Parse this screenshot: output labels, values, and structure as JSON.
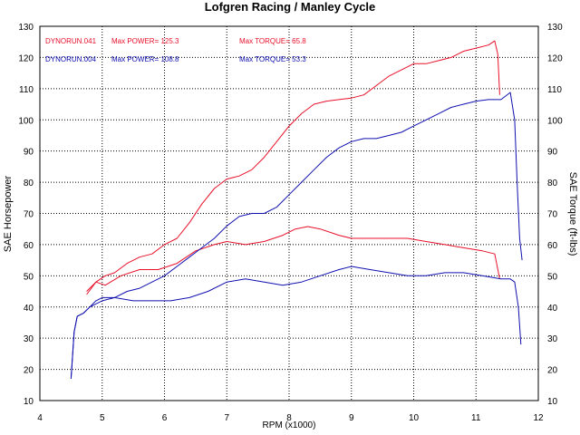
{
  "chart_data": {
    "type": "line",
    "title": "Lofgren Racing / Manley Cycle",
    "xlabel": "RPM (x1000)",
    "ylabel": "SAE Horsepower",
    "ylabel_right": "SAE Torque (ft-lbs)",
    "xlim": [
      4,
      12
    ],
    "ylim": [
      10,
      130
    ],
    "x_ticks": [
      4,
      5,
      6,
      7,
      8,
      9,
      10,
      11,
      12
    ],
    "y_ticks": [
      10,
      20,
      30,
      40,
      50,
      60,
      70,
      80,
      90,
      100,
      110,
      120,
      130
    ],
    "grid": true,
    "legend": [
      {
        "run": "DYNORUN.041",
        "power_label": "Max POWER= 125.3",
        "torque_label": "Max TORQUE= 65.8",
        "color": "#e8102a"
      },
      {
        "run": "DYNORUN.004",
        "power_label": "Max POWER= 108.8",
        "torque_label": "Max TORQUE= 53.3",
        "color": "#1010b0"
      }
    ],
    "series": [
      {
        "name": "DYNORUN.041 Power",
        "color": "#e8102a",
        "x": [
          4.75,
          4.9,
          5.05,
          5.2,
          5.4,
          5.6,
          5.8,
          6.0,
          6.2,
          6.4,
          6.6,
          6.8,
          7.0,
          7.2,
          7.4,
          7.6,
          7.8,
          8.0,
          8.2,
          8.4,
          8.6,
          8.8,
          9.0,
          9.2,
          9.4,
          9.6,
          9.8,
          10.0,
          10.2,
          10.4,
          10.6,
          10.8,
          11.0,
          11.2,
          11.3,
          11.35,
          11.38
        ],
        "y": [
          44,
          48,
          50,
          51,
          54,
          56,
          57,
          60,
          62,
          67,
          73,
          78,
          81,
          82,
          84,
          88,
          93,
          98,
          102,
          105,
          106,
          106.5,
          107,
          108,
          111,
          114,
          116,
          118,
          118,
          119,
          120,
          122,
          123,
          124,
          125.3,
          121,
          108
        ]
      },
      {
        "name": "DYNORUN.041 Torque",
        "color": "#e8102a",
        "x": [
          4.75,
          4.9,
          5.05,
          5.3,
          5.6,
          5.9,
          6.2,
          6.5,
          6.8,
          7.0,
          7.3,
          7.6,
          7.9,
          8.1,
          8.3,
          8.5,
          8.8,
          9.0,
          9.3,
          9.6,
          9.9,
          10.2,
          10.5,
          10.8,
          11.1,
          11.3,
          11.38
        ],
        "y": [
          45,
          48,
          47,
          50,
          52,
          52,
          54,
          58,
          60,
          61,
          60,
          61,
          63,
          65,
          65.8,
          65,
          63,
          62,
          62,
          62,
          62,
          61,
          60,
          59,
          58,
          57,
          49
        ]
      },
      {
        "name": "DYNORUN.004 Power",
        "color": "#1010b0",
        "x": [
          4.5,
          4.55,
          4.6,
          4.7,
          4.8,
          4.9,
          5.0,
          5.2,
          5.4,
          5.6,
          5.8,
          6.0,
          6.2,
          6.4,
          6.6,
          6.8,
          7.0,
          7.2,
          7.4,
          7.6,
          7.8,
          8.0,
          8.2,
          8.4,
          8.6,
          8.8,
          9.0,
          9.2,
          9.4,
          9.6,
          9.8,
          10.0,
          10.2,
          10.4,
          10.6,
          10.8,
          11.0,
          11.2,
          11.4,
          11.55,
          11.62,
          11.66,
          11.7,
          11.74
        ],
        "y": [
          17,
          32,
          37,
          38,
          40,
          41,
          42,
          43,
          45,
          46,
          48,
          50,
          53,
          56,
          59,
          62,
          66,
          69,
          70,
          70,
          72,
          76,
          80,
          84,
          88,
          91,
          93,
          94,
          94,
          95,
          96,
          98,
          100,
          102,
          104,
          105,
          106,
          106.5,
          106.5,
          108.8,
          100,
          80,
          62,
          55
        ]
      },
      {
        "name": "DYNORUN.004 Torque",
        "color": "#1010b0",
        "x": [
          4.5,
          4.55,
          4.6,
          4.7,
          4.8,
          4.9,
          5.0,
          5.2,
          5.5,
          5.8,
          6.1,
          6.4,
          6.7,
          7.0,
          7.3,
          7.6,
          7.9,
          8.2,
          8.5,
          8.8,
          9.0,
          9.3,
          9.6,
          9.9,
          10.2,
          10.5,
          10.8,
          11.1,
          11.4,
          11.55,
          11.62,
          11.68,
          11.72
        ],
        "y": [
          17,
          32,
          37,
          38,
          40,
          42,
          43,
          43,
          42,
          42,
          42,
          43,
          45,
          48,
          49,
          48,
          47,
          48,
          50,
          52,
          53,
          52,
          51,
          50,
          50,
          51,
          51,
          50,
          49,
          49,
          48,
          40,
          28
        ]
      }
    ]
  }
}
